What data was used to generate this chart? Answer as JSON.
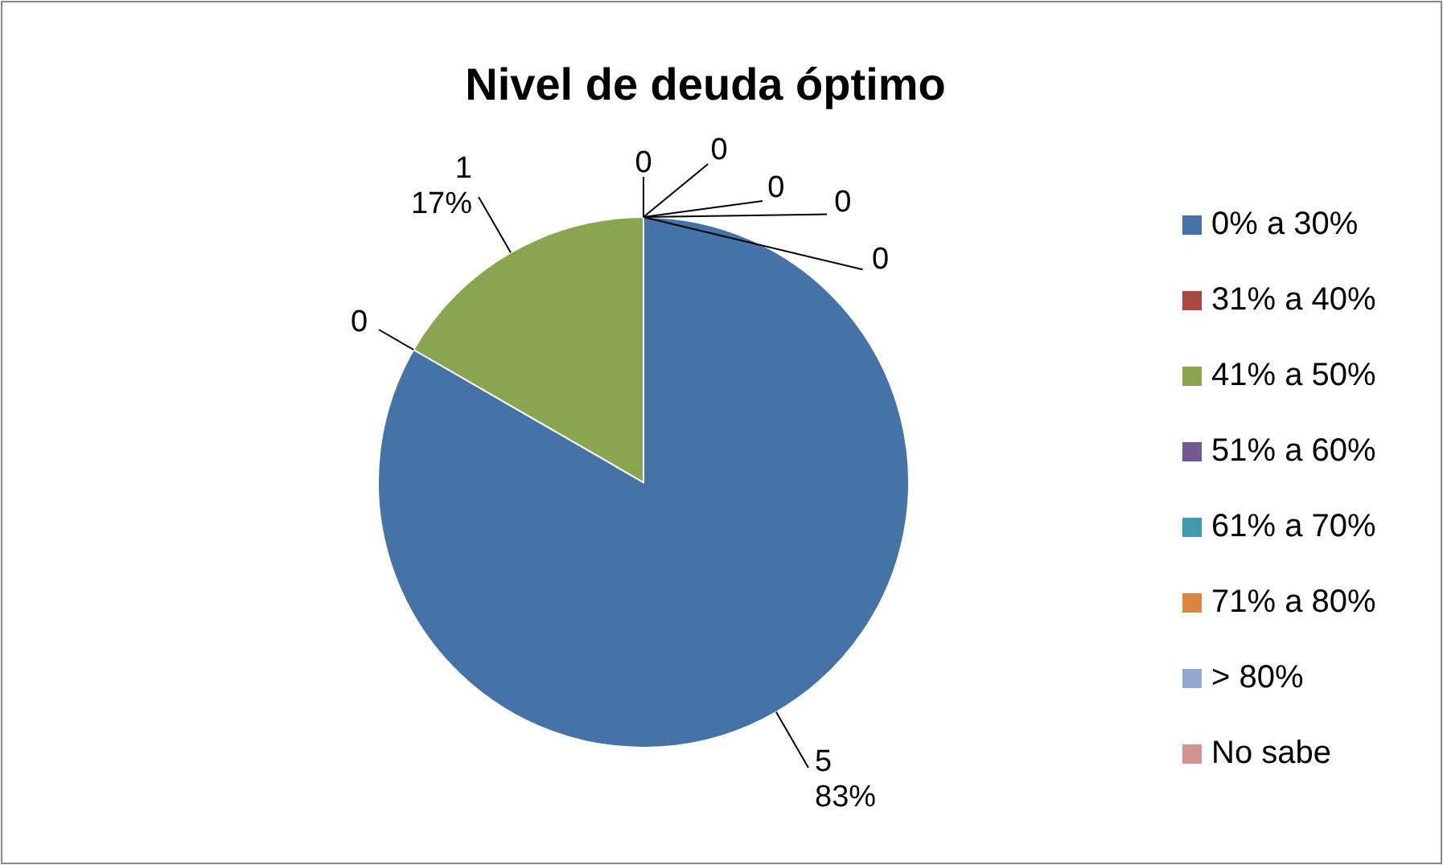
{
  "chart_data": {
    "type": "pie",
    "title": "Nivel de deuda óptimo",
    "categories": [
      "0% a 30%",
      "31% a 40%",
      "41% a 50%",
      "51% a 60%",
      "61% a 70%",
      "71% a 80%",
      "> 80%",
      "No sabe"
    ],
    "values": [
      5,
      0,
      1,
      0,
      0,
      0,
      0,
      0
    ],
    "colors": [
      "#4572a7",
      "#aa4643",
      "#89a54e",
      "#71588f",
      "#4198af",
      "#db843d",
      "#93a9cf",
      "#d19392"
    ],
    "value_labels": [
      "5\n83%",
      "0",
      "1\n17%",
      "0",
      "0",
      "0",
      "0",
      "0"
    ],
    "legend": "right"
  }
}
